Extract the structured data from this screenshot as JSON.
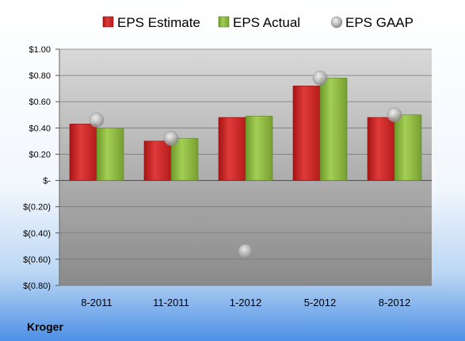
{
  "company": "Kroger",
  "chart_data": {
    "type": "bar",
    "categories": [
      "8-2011",
      "11-2011",
      "1-2012",
      "5-2012",
      "8-2012"
    ],
    "series": [
      {
        "name": "EPS Estimate",
        "type": "bar",
        "color": "#d42a2a",
        "values": [
          0.43,
          0.3,
          0.48,
          0.72,
          0.48
        ]
      },
      {
        "name": "EPS Actual",
        "type": "bar",
        "color": "#8cbd3c",
        "values": [
          0.4,
          0.32,
          0.49,
          0.78,
          0.5
        ]
      },
      {
        "name": "EPS GAAP",
        "type": "scatter",
        "color": "#b8b8b8",
        "values": [
          0.46,
          0.32,
          -0.54,
          0.78,
          0.5
        ]
      }
    ],
    "ylim": [
      -0.8,
      1.0
    ],
    "yticks": [
      1.0,
      0.8,
      0.6,
      0.4,
      0.2,
      0,
      -0.2,
      -0.4,
      -0.6,
      -0.8
    ],
    "ytick_labels": [
      "$1.00",
      "$0.80",
      "$0.60",
      "$0.40",
      "$0.20",
      "$-",
      "$(0.20)",
      "$(0.40)",
      "$(0.60)",
      "$(0.80)"
    ],
    "grid": true,
    "legend": "top"
  }
}
